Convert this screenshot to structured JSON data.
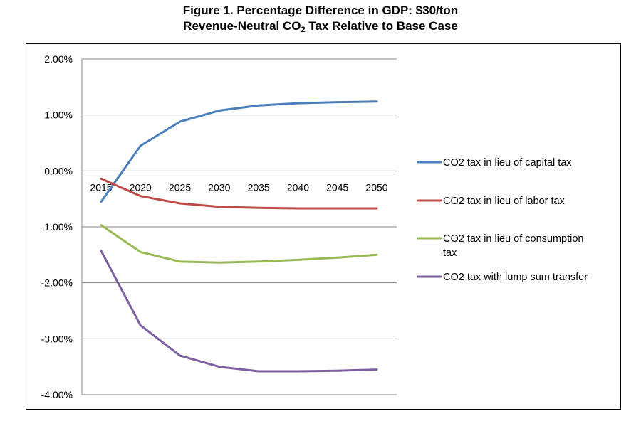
{
  "title": {
    "line1": "Figure 1. Percentage Difference in GDP: $30/ton",
    "line2_prefix": "Revenue-Neutral CO",
    "line2_sub": "2",
    "line2_suffix": " Tax Relative to Base Case"
  },
  "chart_data": {
    "type": "line",
    "title": "Figure 1. Percentage Difference in GDP: $30/ton Revenue-Neutral CO2 Tax Relative to Base Case",
    "xlabel": "",
    "ylabel": "",
    "x": [
      2015,
      2020,
      2025,
      2030,
      2035,
      2040,
      2045,
      2050
    ],
    "x_tick_labels": [
      "2015",
      "2020",
      "2025",
      "2030",
      "2035",
      "2040",
      "2045",
      "2050"
    ],
    "ylim": [
      -4.0,
      2.0
    ],
    "y_ticks": [
      2.0,
      1.0,
      0.0,
      -1.0,
      -2.0,
      -3.0,
      -4.0
    ],
    "y_tick_labels": [
      "2.00%",
      "1.00%",
      "0.00%",
      "-1.00%",
      "-2.00%",
      "-3.00%",
      "-4.00%"
    ],
    "y_unit": "%",
    "grid": "horizontal",
    "legend_position": "right",
    "series": [
      {
        "name": "CO2 tax in lieu of capital tax",
        "legend_lines": [
          "CO2 tax in lieu of capital tax"
        ],
        "color": "#4a7ebb",
        "values": [
          -0.55,
          0.45,
          0.88,
          1.08,
          1.17,
          1.21,
          1.23,
          1.24
        ]
      },
      {
        "name": "CO2 tax in lieu of labor tax",
        "legend_lines": [
          "CO2 tax in lieu of labor tax"
        ],
        "color": "#be4b48",
        "values": [
          -0.14,
          -0.45,
          -0.58,
          -0.64,
          -0.66,
          -0.67,
          -0.67,
          -0.67
        ]
      },
      {
        "name": "CO2 tax in lieu of consumption tax",
        "legend_lines": [
          "CO2 tax in lieu of consumption",
          "tax"
        ],
        "color": "#98b954",
        "values": [
          -0.97,
          -1.45,
          -1.62,
          -1.64,
          -1.62,
          -1.59,
          -1.55,
          -1.5
        ]
      },
      {
        "name": "CO2 tax with lump sum transfer",
        "legend_lines": [
          "CO2 tax with lump sum transfer"
        ],
        "color": "#7d60a0",
        "values": [
          -1.43,
          -2.76,
          -3.3,
          -3.5,
          -3.58,
          -3.58,
          -3.57,
          -3.55
        ]
      }
    ]
  }
}
